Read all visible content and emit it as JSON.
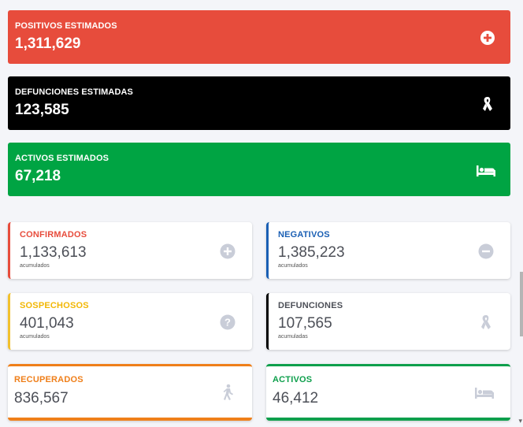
{
  "summary": {
    "positivos": {
      "label": "POSITIVOS ESTIMADOS",
      "value": "1,311,629",
      "color": "#e74c3c",
      "icon": "plus-circle-icon"
    },
    "defunciones": {
      "label": "DEFUNCIONES ESTIMADAS",
      "value": "123,585",
      "color": "#000000",
      "icon": "ribbon-icon"
    },
    "activos": {
      "label": "ACTIVOS ESTIMADOS",
      "value": "67,218",
      "color": "#00a443",
      "icon": "bed-icon"
    }
  },
  "cards": {
    "confirmados": {
      "label": "CONFIRMADOS",
      "value": "1,133,613",
      "sub": "acumulados",
      "color": "#e74c3c",
      "icon": "plus-circle-icon"
    },
    "negativos": {
      "label": "NEGATIVOS",
      "value": "1,385,223",
      "sub": "acumulados",
      "color": "#1a5fb4",
      "icon": "minus-circle-icon"
    },
    "sospechosos": {
      "label": "SOSPECHOSOS",
      "value": "401,043",
      "sub": "acumulados",
      "color": "#f2c12e",
      "icon": "question-circle-icon"
    },
    "defunciones": {
      "label": "DEFUNCIONES",
      "value": "107,565",
      "sub": "acumuladas",
      "color": "#000000",
      "icon": "ribbon-icon"
    },
    "recuperados": {
      "label": "RECUPERADOS",
      "value": "836,567",
      "color": "#ef7f1a",
      "icon": "walking-person-icon"
    },
    "activos": {
      "label": "ACTIVOS",
      "value": "46,412",
      "color": "#0e9f4c",
      "icon": "bed-icon"
    }
  },
  "icon_color": "#c9cdd8"
}
